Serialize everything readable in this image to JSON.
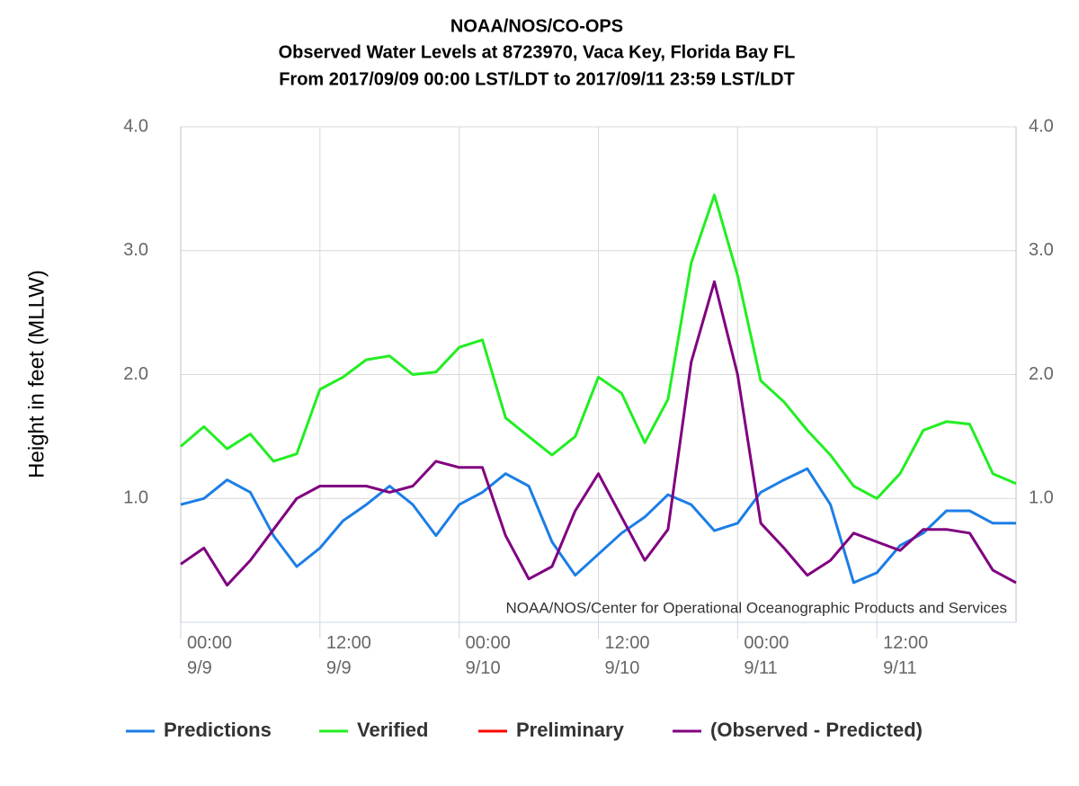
{
  "chart_data": {
    "type": "line",
    "title": [
      "NOAA/NOS/CO-OPS",
      "Observed Water Levels at 8723970, Vaca Key, Florida Bay FL",
      "From 2017/09/09 00:00 LST/LDT to 2017/09/11 23:59 LST/LDT"
    ],
    "ylabel": "Height in feet (MLLW)",
    "credit": "NOAA/NOS/Center for Operational Oceanographic Products and Services",
    "x": [
      0,
      2,
      4,
      6,
      8,
      10,
      12,
      14,
      16,
      18,
      20,
      22,
      24,
      26,
      28,
      30,
      32,
      34,
      36,
      38,
      40,
      42,
      44,
      46,
      48,
      50,
      52,
      54,
      56,
      58,
      60,
      62,
      64,
      66,
      68,
      70,
      72
    ],
    "xlim": [
      0,
      72
    ],
    "xticks": [
      {
        "value": 0,
        "label": "00:00 9/9"
      },
      {
        "value": 12,
        "label": "12:00 9/9"
      },
      {
        "value": 24,
        "label": "00:00 9/10"
      },
      {
        "value": 36,
        "label": "12:00 9/10"
      },
      {
        "value": 48,
        "label": "00:00 9/11"
      },
      {
        "value": 60,
        "label": "12:00 9/11"
      }
    ],
    "ylim": [
      0,
      4
    ],
    "yticks": [
      {
        "value": 1,
        "label": "1.0"
      },
      {
        "value": 2,
        "label": "2.0"
      },
      {
        "value": 3,
        "label": "3.0"
      },
      {
        "value": 4,
        "label": "4.0"
      }
    ],
    "grid": true,
    "series": [
      {
        "name": "Predictions",
        "color": "#1c7ee6",
        "values": [
          0.95,
          1.0,
          1.15,
          1.05,
          0.7,
          0.45,
          0.6,
          0.82,
          0.95,
          1.1,
          0.95,
          0.7,
          0.95,
          1.05,
          1.2,
          1.1,
          0.65,
          0.38,
          0.55,
          0.72,
          0.85,
          1.03,
          0.95,
          0.74,
          0.8,
          1.05,
          1.15,
          1.24,
          0.95,
          0.32,
          0.4,
          0.62,
          0.72,
          0.9,
          0.9,
          0.8,
          0.8
        ]
      },
      {
        "name": "Verified",
        "color": "#22ee22",
        "values": [
          1.42,
          1.58,
          1.4,
          1.52,
          1.3,
          1.36,
          1.88,
          1.98,
          2.12,
          2.15,
          2.0,
          2.02,
          2.22,
          2.28,
          1.65,
          1.5,
          1.35,
          1.5,
          1.98,
          1.85,
          1.45,
          1.8,
          2.9,
          3.45,
          2.8,
          1.95,
          1.78,
          1.55,
          1.35,
          1.1,
          1.0,
          1.2,
          1.55,
          1.62,
          1.6,
          1.2,
          1.12
        ]
      },
      {
        "name": "Preliminary",
        "color": "#ff0000",
        "values": [
          null,
          null,
          null,
          null,
          null,
          null,
          null,
          null,
          null,
          null,
          null,
          null,
          null,
          null,
          null,
          null,
          null,
          null,
          null,
          null,
          null,
          null,
          null,
          null,
          null,
          null,
          null,
          null,
          null,
          null,
          null,
          null,
          null,
          null,
          null,
          null,
          null
        ]
      },
      {
        "name": "(Observed - Predicted)",
        "color": "#800080",
        "values": [
          0.47,
          0.6,
          0.3,
          0.5,
          0.75,
          1.0,
          1.1,
          1.1,
          1.1,
          1.05,
          1.1,
          1.3,
          1.25,
          1.25,
          0.7,
          0.35,
          0.45,
          0.9,
          1.2,
          0.85,
          0.5,
          0.75,
          2.1,
          2.75,
          2.0,
          0.8,
          0.6,
          0.38,
          0.5,
          0.72,
          0.65,
          0.58,
          0.75,
          0.75,
          0.72,
          0.42,
          0.32
        ]
      }
    ]
  }
}
